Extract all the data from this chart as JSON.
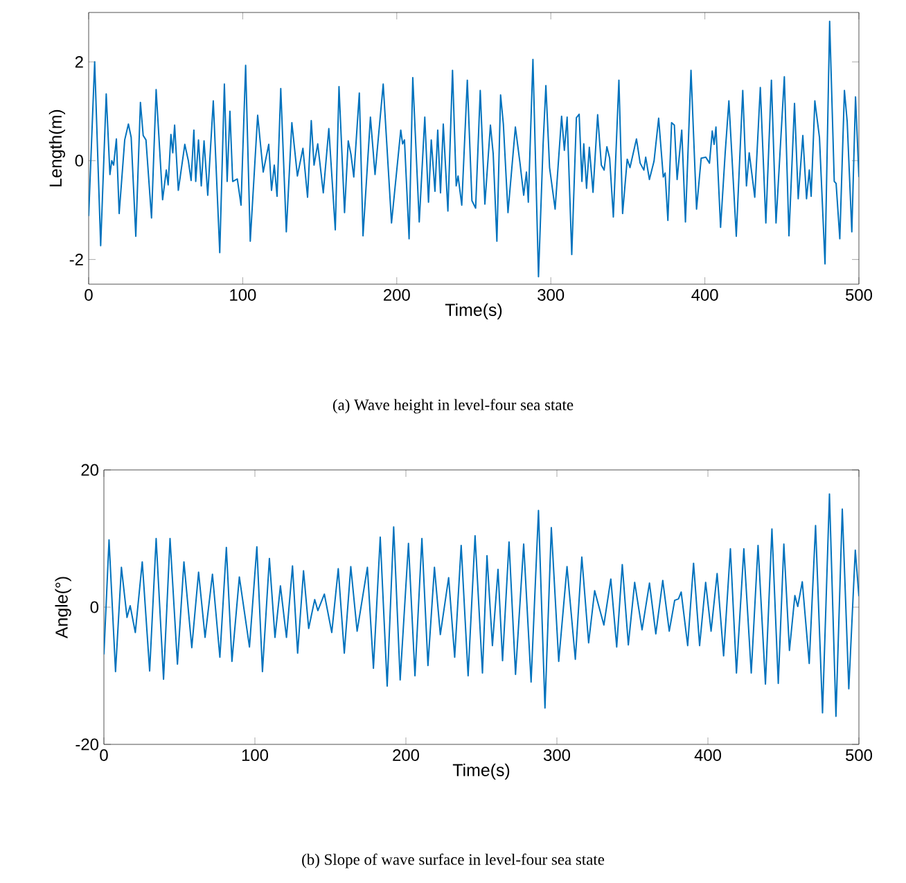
{
  "chart_data": [
    {
      "type": "line",
      "xlabel": "Time(s)",
      "ylabel": "Length(m)",
      "annotations": [
        "(a)  Wave height in level-four sea state"
      ],
      "xlim": [
        0,
        500
      ],
      "ylim": [
        -2.5,
        3
      ],
      "xticks": [
        0,
        100,
        200,
        300,
        400,
        500
      ],
      "yticks": [
        -2,
        0,
        2
      ],
      "x": [
        0,
        3.9,
        7.8,
        11.4,
        13.8,
        15.0,
        16.2,
        18.0,
        19.8,
        23.4,
        25.8,
        27.6,
        30.6,
        33.6,
        35.4,
        37.2,
        40.8,
        43.8,
        48.0,
        50.4,
        51.6,
        53.4,
        54.6,
        55.8,
        58.2,
        62.4,
        64.7,
        66.5,
        68.3,
        69.5,
        71.3,
        73.1,
        74.9,
        77.3,
        80.9,
        85.1,
        88.1,
        89.9,
        91.7,
        93.5,
        96.5,
        98.9,
        101.9,
        104.9,
        109.7,
        113.3,
        116.9,
        118.7,
        120.5,
        122.3,
        124.7,
        128.3,
        131.9,
        135.5,
        139.1,
        142.1,
        144.5,
        146.3,
        148.7,
        152.3,
        155.9,
        160.1,
        162.5,
        166.1,
        168.5,
        170.3,
        172.1,
        175.7,
        178.1,
        182.9,
        185.9,
        191.2,
        196.6,
        202.6,
        203.8,
        205.0,
        208.0,
        210.4,
        214.6,
        218.2,
        220.6,
        222.4,
        224.8,
        226.6,
        228.4,
        230.2,
        233.2,
        236.2,
        238.6,
        239.8,
        242.2,
        245.8,
        248.8,
        251.2,
        254.2,
        257.2,
        260.8,
        262.6,
        265.0,
        267.4,
        269.2,
        272.2,
        277.0,
        280.0,
        282.4,
        284.2,
        285.4,
        288.4,
        292.0,
        295.0,
        296.8,
        299.2,
        302.8,
        307.0,
        308.8,
        310.6,
        313.6,
        316.6,
        318.4,
        320.2,
        321.4,
        323.2,
        325.0,
        327.4,
        330.4,
        332.8,
        334.6,
        336.4,
        338.2,
        340.6,
        344.2,
        346.6,
        349.6,
        351.4,
        355.6,
        358.0,
        360.4,
        361.6,
        364.0,
        367.0,
        370.0,
        373.0,
        374.2,
        376.0,
        378.4,
        380.2,
        382.0,
        385.0,
        387.4,
        391.0,
        394.6,
        397.6,
        400.6,
        403.0,
        404.8,
        406.0,
        407.2,
        410.2,
        413.2,
        415.6,
        420.4,
        424.6,
        427.0,
        428.8,
        432.4,
        436.0,
        439.6,
        443.2,
        446.2,
        451.6,
        454.6,
        458.2,
        460.6,
        463.6,
        466.0,
        467.8,
        469.0,
        471.4,
        474.4,
        478.0,
        481.0,
        484.0,
        485.2,
        487.6,
        490.6,
        492.4,
        495.4,
        497.8,
        500
      ],
      "series": [
        {
          "color": "#0072bd",
          "values": [
            -1.12,
            2.0,
            -1.72,
            1.35,
            -0.28,
            0,
            -0.09,
            0.44,
            -1.07,
            0.42,
            0.74,
            0.47,
            -1.53,
            1.18,
            0.51,
            0.42,
            -1.16,
            1.44,
            -0.79,
            -0.19,
            -0.49,
            0.53,
            0.16,
            0.72,
            -0.6,
            0.33,
            0,
            -0.4,
            0.62,
            -0.42,
            0.42,
            -0.51,
            0.4,
            -0.7,
            1.21,
            -1.86,
            1.55,
            -0.42,
            1.0,
            -0.42,
            -0.37,
            -0.9,
            1.93,
            -1.63,
            0.92,
            -0.23,
            0.33,
            -0.6,
            -0.09,
            -0.72,
            1.46,
            -1.44,
            0.77,
            -0.31,
            0.25,
            -0.74,
            0.81,
            -0.09,
            0.34,
            -0.65,
            0.65,
            -1.4,
            1.5,
            -1.05,
            0.4,
            0.12,
            -0.33,
            1.37,
            -1.52,
            0.88,
            -0.28,
            1.55,
            -1.26,
            0.62,
            0.34,
            0.42,
            -1.58,
            1.68,
            -1.24,
            0.88,
            -0.84,
            0.42,
            -0.62,
            0.62,
            -0.65,
            0.74,
            -1.02,
            1.83,
            -0.51,
            -0.31,
            -0.9,
            1.63,
            -0.81,
            -0.96,
            1.42,
            -0.88,
            0.72,
            0.14,
            -1.63,
            1.33,
            0.74,
            -1.05,
            0.68,
            -0.05,
            -0.7,
            -0.23,
            -0.84,
            2.05,
            -2.35,
            0.33,
            1.52,
            -0.14,
            -0.98,
            0.9,
            0.21,
            0.88,
            -1.9,
            0.87,
            0.94,
            -0.42,
            0.34,
            -0.56,
            0.27,
            -0.64,
            0.93,
            -0.09,
            -0.19,
            0.28,
            0.05,
            -1.14,
            1.63,
            -1.07,
            0.03,
            -0.14,
            0.44,
            -0.05,
            -0.19,
            0.07,
            -0.38,
            -0.01,
            0.86,
            -0.33,
            -0.25,
            -1.21,
            0.77,
            0.72,
            -0.38,
            0.62,
            -1.24,
            1.83,
            -0.98,
            0.05,
            0.07,
            -0.05,
            0.6,
            0.33,
            0.68,
            -1.35,
            0.16,
            1.21,
            -1.53,
            1.42,
            -0.51,
            0.16,
            -0.74,
            1.48,
            -1.26,
            1.63,
            -1.26,
            1.7,
            -1.52,
            1.16,
            -0.77,
            0.51,
            -0.77,
            -0.19,
            -0.72,
            1.21,
            0.47,
            -2.09,
            2.82,
            -0.42,
            -0.46,
            -1.58,
            1.42,
            0.79,
            -1.44,
            1.29,
            -0.33
          ]
        }
      ]
    },
    {
      "type": "line",
      "xlabel": "Time(s)",
      "ylabel": "Angle(°)",
      "annotations": [
        "(b)  Slope of wave surface in level-four sea state"
      ],
      "xlim": [
        0,
        500
      ],
      "ylim": [
        -20,
        20
      ],
      "xticks": [
        0,
        100,
        200,
        300,
        400,
        500
      ],
      "yticks": [
        -20,
        0,
        20
      ],
      "x": [
        0,
        3.4,
        7.7,
        11.6,
        15.3,
        17.4,
        20.8,
        25.4,
        30.3,
        34.6,
        39.5,
        43.8,
        48.7,
        53.0,
        58.2,
        62.7,
        67.0,
        71.9,
        76.8,
        81.1,
        84.8,
        89.7,
        96.4,
        101.3,
        105.0,
        109.6,
        113.3,
        116.9,
        120.9,
        124.9,
        128.3,
        132.2,
        135.6,
        139.6,
        141.7,
        146.0,
        150.9,
        155.2,
        159.2,
        163.5,
        167.7,
        174.5,
        178.5,
        183.0,
        187.6,
        191.9,
        196.2,
        201.7,
        206.0,
        210.6,
        214.6,
        218.9,
        222.8,
        228.3,
        232.3,
        236.6,
        241.2,
        245.8,
        250.7,
        253.7,
        257.3,
        261.0,
        264.0,
        268.3,
        272.6,
        278.0,
        282.9,
        287.8,
        292.1,
        296.3,
        301.2,
        306.7,
        312.2,
        316.5,
        321.0,
        325.0,
        331.1,
        335.7,
        339.6,
        343.3,
        347.3,
        351.5,
        356.4,
        361.3,
        365.5,
        370.1,
        374.4,
        378.0,
        380.5,
        382.3,
        386.6,
        390.5,
        394.5,
        398.5,
        402.1,
        406.1,
        410.4,
        414.9,
        418.9,
        423.8,
        428.7,
        433.2,
        438.1,
        442.4,
        446.6,
        450.3,
        454.0,
        457.6,
        459.5,
        462.5,
        467.1,
        471.3,
        475.9,
        480.5,
        484.8,
        489.0,
        493.3,
        497.6,
        500
      ],
      "series": [
        {
          "color": "#0072bd",
          "values": [
            -6.9,
            9.8,
            -9.4,
            5.8,
            -1.5,
            0.2,
            -3.7,
            6.6,
            -9.3,
            10.0,
            -10.5,
            10.0,
            -8.3,
            6.6,
            -5.9,
            5.1,
            -4.4,
            4.8,
            -7.3,
            8.7,
            -7.9,
            4.4,
            -5.8,
            8.8,
            -9.4,
            7.1,
            -4.4,
            3.1,
            -4.4,
            6.0,
            -6.7,
            5.3,
            -3.1,
            1.1,
            -0.5,
            1.9,
            -3.7,
            5.6,
            -6.7,
            5.9,
            -3.5,
            5.8,
            -8.9,
            10.2,
            -11.5,
            11.7,
            -10.6,
            9.3,
            -10.0,
            10.0,
            -8.5,
            5.8,
            -4.0,
            4.3,
            -7.3,
            9.0,
            -10.0,
            10.4,
            -9.6,
            7.5,
            -5.6,
            5.5,
            -7.8,
            9.5,
            -9.8,
            9.2,
            -10.9,
            14.1,
            -14.7,
            11.6,
            -7.9,
            5.9,
            -7.6,
            7.3,
            -5.2,
            2.4,
            -2.6,
            4.1,
            -5.8,
            6.2,
            -5.5,
            3.6,
            -3.3,
            3.5,
            -3.9,
            3.9,
            -3.5,
            1.0,
            1.2,
            2.2,
            -5.6,
            6.4,
            -5.6,
            3.6,
            -3.5,
            4.9,
            -7.1,
            8.5,
            -9.6,
            8.5,
            -9.6,
            9.0,
            -11.2,
            11.4,
            -11.1,
            9.2,
            -6.3,
            1.7,
            0.1,
            3.7,
            -8.2,
            11.9,
            -15.4,
            16.5,
            -15.9,
            14.3,
            -11.9,
            8.3,
            1.6
          ]
        }
      ]
    }
  ]
}
